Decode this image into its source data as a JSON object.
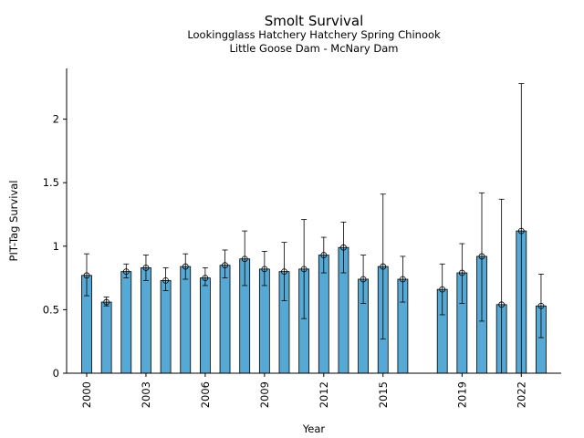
{
  "chart_data": {
    "type": "bar",
    "title": "Smolt Survival",
    "subtitle_lines": [
      "Lookingglass Hatchery Hatchery Spring Chinook",
      "Little Goose Dam - McNary Dam"
    ],
    "xlabel": "Year",
    "ylabel": "PIT-Tag Survival",
    "xlim": [
      1999,
      2024
    ],
    "ylim": [
      0,
      2.4
    ],
    "x_ticks": [
      2000,
      2003,
      2006,
      2009,
      2012,
      2015,
      2019,
      2022
    ],
    "y_ticks": [
      0,
      0.5,
      1,
      1.5,
      2
    ],
    "y_tick_labels": [
      "0",
      "0.5",
      "1",
      "1.5",
      "2"
    ],
    "bar_color": "#56a9d4",
    "grid": false,
    "legend": "none",
    "points": [
      {
        "year": 2000,
        "value": 0.77,
        "lower": 0.61,
        "upper": 0.94
      },
      {
        "year": 2001,
        "value": 0.56,
        "lower": 0.53,
        "upper": 0.6
      },
      {
        "year": 2002,
        "value": 0.8,
        "lower": 0.75,
        "upper": 0.86
      },
      {
        "year": 2003,
        "value": 0.83,
        "lower": 0.73,
        "upper": 0.93
      },
      {
        "year": 2004,
        "value": 0.73,
        "lower": 0.65,
        "upper": 0.83
      },
      {
        "year": 2005,
        "value": 0.84,
        "lower": 0.74,
        "upper": 0.94
      },
      {
        "year": 2006,
        "value": 0.75,
        "lower": 0.69,
        "upper": 0.83
      },
      {
        "year": 2007,
        "value": 0.85,
        "lower": 0.75,
        "upper": 0.97
      },
      {
        "year": 2008,
        "value": 0.9,
        "lower": 0.69,
        "upper": 1.12
      },
      {
        "year": 2009,
        "value": 0.82,
        "lower": 0.69,
        "upper": 0.96
      },
      {
        "year": 2010,
        "value": 0.8,
        "lower": 0.57,
        "upper": 1.03
      },
      {
        "year": 2011,
        "value": 0.82,
        "lower": 0.43,
        "upper": 1.21
      },
      {
        "year": 2012,
        "value": 0.93,
        "lower": 0.79,
        "upper": 1.07
      },
      {
        "year": 2013,
        "value": 0.99,
        "lower": 0.79,
        "upper": 1.19
      },
      {
        "year": 2014,
        "value": 0.74,
        "lower": 0.55,
        "upper": 0.93
      },
      {
        "year": 2015,
        "value": 0.84,
        "lower": 0.27,
        "upper": 1.41
      },
      {
        "year": 2016,
        "value": 0.74,
        "lower": 0.56,
        "upper": 0.92
      },
      {
        "year": 2018,
        "value": 0.66,
        "lower": 0.46,
        "upper": 0.86
      },
      {
        "year": 2019,
        "value": 0.79,
        "lower": 0.55,
        "upper": 1.02
      },
      {
        "year": 2020,
        "value": 0.92,
        "lower": 0.41,
        "upper": 1.42
      },
      {
        "year": 2021,
        "value": 0.54,
        "lower": 0.0,
        "upper": 1.37
      },
      {
        "year": 2022,
        "value": 1.12,
        "lower": 0.0,
        "upper": 2.28
      },
      {
        "year": 2023,
        "value": 0.53,
        "lower": 0.28,
        "upper": 0.78
      }
    ]
  }
}
